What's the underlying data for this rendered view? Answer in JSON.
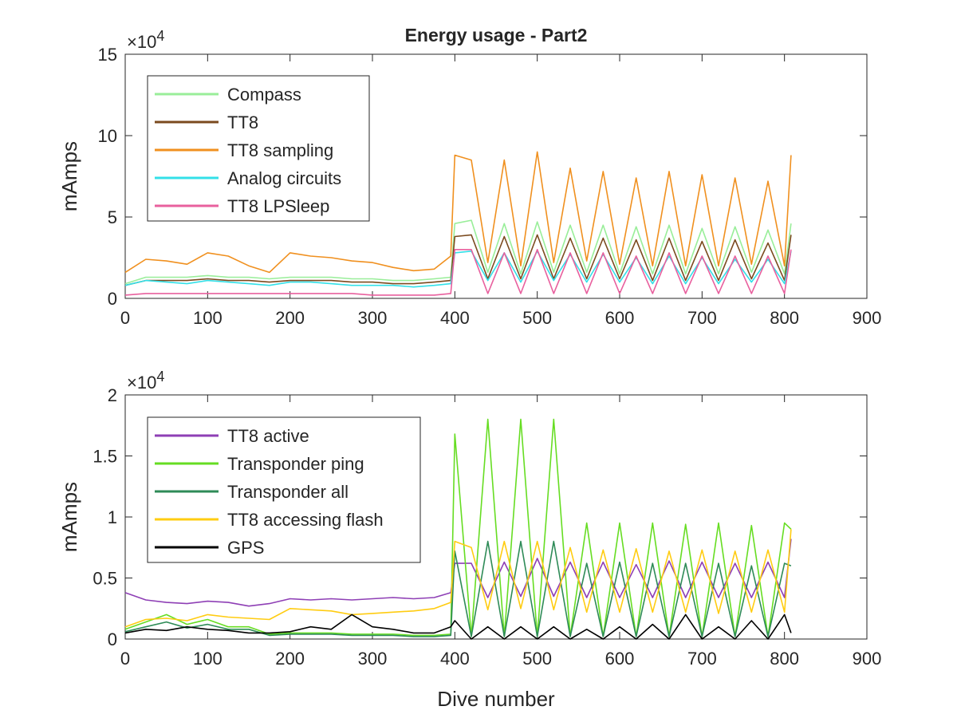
{
  "figure": {
    "title": "Energy usage - Part2",
    "xlabel": "Dive number"
  },
  "chart_data": [
    {
      "type": "line",
      "title": "Energy usage - Part2",
      "xlabel": "",
      "ylabel": "mAmps",
      "exponent_base": "×10",
      "exponent_power": "4",
      "xlim": [
        0,
        900
      ],
      "ylim": [
        0,
        15
      ],
      "xticks": [
        "0",
        "100",
        "200",
        "300",
        "400",
        "500",
        "600",
        "700",
        "800",
        "900"
      ],
      "yticks": [
        "0",
        "5",
        "10",
        "15"
      ],
      "grid": false,
      "legend_position": "top-left",
      "x": [
        0,
        25,
        50,
        75,
        100,
        125,
        150,
        175,
        200,
        225,
        250,
        275,
        300,
        325,
        350,
        375,
        395,
        400,
        420,
        440,
        460,
        480,
        500,
        520,
        540,
        560,
        580,
        600,
        620,
        640,
        660,
        680,
        700,
        720,
        740,
        760,
        780,
        800,
        808
      ],
      "series": [
        {
          "name": "Compass",
          "color": "#99ee99",
          "values": [
            0.9,
            1.3,
            1.3,
            1.3,
            1.4,
            1.3,
            1.3,
            1.2,
            1.3,
            1.3,
            1.3,
            1.2,
            1.2,
            1.1,
            1.1,
            1.2,
            1.3,
            4.6,
            4.8,
            1.6,
            4.6,
            1.5,
            4.7,
            1.6,
            4.5,
            1.6,
            4.5,
            1.5,
            4.4,
            1.5,
            4.5,
            1.5,
            4.3,
            1.5,
            4.4,
            1.6,
            4.2,
            1.5,
            4.6
          ]
        },
        {
          "name": "TT8",
          "color": "#7b4a1e",
          "values": [
            0.8,
            1.1,
            1.1,
            1.1,
            1.2,
            1.1,
            1.1,
            1.0,
            1.1,
            1.1,
            1.1,
            1.0,
            1.0,
            0.9,
            0.9,
            1.0,
            1.1,
            3.8,
            3.9,
            1.2,
            3.8,
            1.2,
            3.9,
            1.2,
            3.7,
            1.2,
            3.7,
            1.2,
            3.6,
            1.1,
            3.7,
            1.1,
            3.5,
            1.1,
            3.6,
            1.2,
            3.4,
            1.1,
            3.9
          ]
        },
        {
          "name": "TT8 sampling",
          "color": "#f0901f",
          "values": [
            1.6,
            2.4,
            2.3,
            2.1,
            2.8,
            2.6,
            2.0,
            1.6,
            2.8,
            2.6,
            2.5,
            2.3,
            2.2,
            1.9,
            1.7,
            1.8,
            2.6,
            8.8,
            8.5,
            2.2,
            8.5,
            2.0,
            9.0,
            2.2,
            8.0,
            2.3,
            7.8,
            2.1,
            7.4,
            2.0,
            7.8,
            2.0,
            7.6,
            2.0,
            7.4,
            2.1,
            7.2,
            2.0,
            8.8
          ]
        },
        {
          "name": "Analog circuits",
          "color": "#33e0e8",
          "values": [
            0.8,
            1.1,
            1.0,
            0.9,
            1.1,
            1.0,
            0.9,
            0.8,
            1.0,
            1.0,
            0.9,
            0.8,
            0.8,
            0.8,
            0.7,
            0.8,
            0.9,
            2.8,
            2.9,
            1.1,
            2.8,
            1.0,
            2.9,
            1.1,
            2.7,
            1.0,
            2.7,
            1.0,
            2.5,
            0.9,
            2.6,
            0.9,
            2.5,
            0.9,
            2.4,
            1.0,
            2.4,
            0.9,
            2.9
          ]
        },
        {
          "name": "TT8 LPSleep",
          "color": "#e8609e",
          "values": [
            0.2,
            0.3,
            0.3,
            0.3,
            0.3,
            0.3,
            0.3,
            0.3,
            0.3,
            0.3,
            0.3,
            0.3,
            0.2,
            0.2,
            0.2,
            0.2,
            0.3,
            3.0,
            3.0,
            0.3,
            2.8,
            0.3,
            3.0,
            0.3,
            2.8,
            0.3,
            2.8,
            0.3,
            2.6,
            0.3,
            2.8,
            0.3,
            2.6,
            0.3,
            2.6,
            0.3,
            2.6,
            0.3,
            3.0
          ]
        }
      ]
    },
    {
      "type": "line",
      "title": "",
      "xlabel": "Dive number",
      "ylabel": "mAmps",
      "exponent_base": "×10",
      "exponent_power": "4",
      "xlim": [
        0,
        900
      ],
      "ylim": [
        0,
        2
      ],
      "xticks": [
        "0",
        "100",
        "200",
        "300",
        "400",
        "500",
        "600",
        "700",
        "800",
        "900"
      ],
      "yticks": [
        "0",
        "0.5",
        "1",
        "1.5",
        "2"
      ],
      "grid": false,
      "legend_position": "top-left",
      "x": [
        0,
        25,
        50,
        75,
        100,
        125,
        150,
        175,
        200,
        225,
        250,
        275,
        300,
        325,
        350,
        375,
        395,
        400,
        420,
        440,
        460,
        480,
        500,
        520,
        540,
        560,
        580,
        600,
        620,
        640,
        660,
        680,
        700,
        720,
        740,
        760,
        780,
        800,
        808
      ],
      "series": [
        {
          "name": "TT8 active",
          "color": "#8e3fb5",
          "values": [
            0.38,
            0.32,
            0.3,
            0.29,
            0.31,
            0.3,
            0.27,
            0.29,
            0.33,
            0.32,
            0.33,
            0.32,
            0.33,
            0.34,
            0.33,
            0.34,
            0.38,
            0.62,
            0.62,
            0.34,
            0.63,
            0.35,
            0.66,
            0.35,
            0.63,
            0.34,
            0.63,
            0.34,
            0.61,
            0.34,
            0.64,
            0.34,
            0.63,
            0.34,
            0.62,
            0.34,
            0.63,
            0.34,
            0.82
          ]
        },
        {
          "name": "Transponder ping",
          "color": "#66dd22",
          "values": [
            0.08,
            0.14,
            0.2,
            0.12,
            0.16,
            0.1,
            0.1,
            0.04,
            0.05,
            0.05,
            0.05,
            0.04,
            0.04,
            0.04,
            0.03,
            0.03,
            0.04,
            1.68,
            0.02,
            1.8,
            0.02,
            1.8,
            0.02,
            1.8,
            0.02,
            0.95,
            0.02,
            0.95,
            0.02,
            0.95,
            0.02,
            0.94,
            0.02,
            0.95,
            0.02,
            0.93,
            0.02,
            0.95,
            0.9
          ]
        },
        {
          "name": "Transponder all",
          "color": "#2e8b57",
          "values": [
            0.06,
            0.1,
            0.14,
            0.09,
            0.12,
            0.08,
            0.08,
            0.03,
            0.04,
            0.04,
            0.04,
            0.03,
            0.03,
            0.03,
            0.02,
            0.02,
            0.03,
            0.72,
            0.02,
            0.8,
            0.02,
            0.8,
            0.02,
            0.8,
            0.02,
            0.62,
            0.02,
            0.63,
            0.02,
            0.62,
            0.02,
            0.62,
            0.02,
            0.62,
            0.02,
            0.6,
            0.02,
            0.62,
            0.6
          ]
        },
        {
          "name": "TT8 accessing flash",
          "color": "#ffcc11",
          "values": [
            0.1,
            0.16,
            0.17,
            0.15,
            0.2,
            0.18,
            0.17,
            0.16,
            0.25,
            0.24,
            0.23,
            0.2,
            0.21,
            0.22,
            0.23,
            0.25,
            0.3,
            0.8,
            0.75,
            0.24,
            0.8,
            0.25,
            0.8,
            0.24,
            0.75,
            0.22,
            0.73,
            0.22,
            0.74,
            0.22,
            0.72,
            0.22,
            0.73,
            0.21,
            0.72,
            0.22,
            0.73,
            0.22,
            0.9
          ]
        },
        {
          "name": "GPS",
          "color": "#000000",
          "values": [
            0.05,
            0.08,
            0.07,
            0.1,
            0.08,
            0.07,
            0.05,
            0.05,
            0.06,
            0.1,
            0.08,
            0.2,
            0.1,
            0.08,
            0.05,
            0.05,
            0.1,
            0.15,
            0.0,
            0.1,
            0.0,
            0.1,
            0.0,
            0.1,
            0.0,
            0.08,
            0.0,
            0.1,
            0.0,
            0.12,
            0.0,
            0.2,
            0.0,
            0.1,
            0.0,
            0.15,
            0.0,
            0.2,
            0.05
          ]
        }
      ]
    }
  ]
}
